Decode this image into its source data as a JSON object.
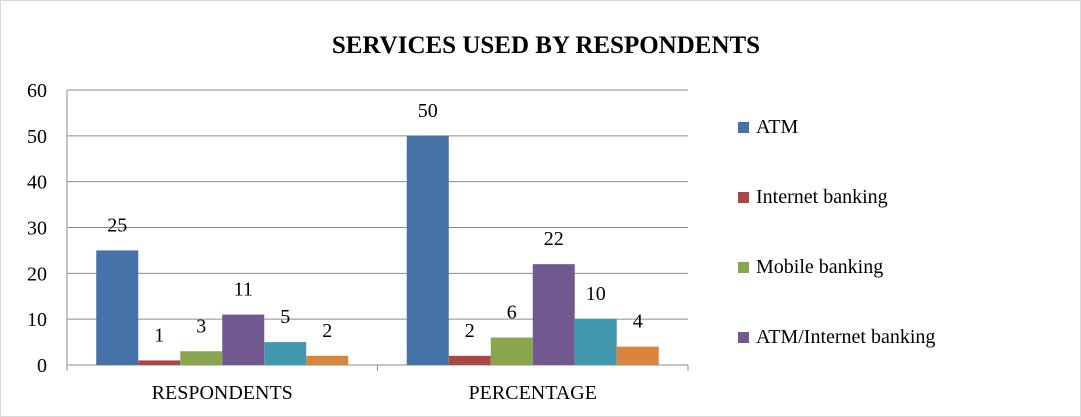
{
  "chart_data": {
    "type": "bar",
    "title": "SERVICES USED BY RESPONDENTS",
    "xlabel": "",
    "ylabel": "",
    "categories": [
      "RESPONDENTS",
      "PERCENTAGE"
    ],
    "series": [
      {
        "name": "ATM",
        "values": [
          25,
          50
        ],
        "color": "#4572a7"
      },
      {
        "name": "Internet banking",
        "values": [
          1,
          2
        ],
        "color": "#aa4643"
      },
      {
        "name": "Mobile banking",
        "values": [
          3,
          6
        ],
        "color": "#89a54e"
      },
      {
        "name": "ATM/Internet banking",
        "values": [
          11,
          22
        ],
        "color": "#71588f"
      },
      {
        "name": "",
        "values": [
          5,
          10
        ],
        "color": "#4198af"
      },
      {
        "name": "",
        "values": [
          2,
          4
        ],
        "color": "#db843d"
      }
    ],
    "ylim": [
      0,
      60
    ],
    "yticks": [
      "0",
      "10",
      "20",
      "30",
      "40",
      "50",
      "60"
    ],
    "grid": true,
    "legend": "right",
    "data_labels": true
  }
}
